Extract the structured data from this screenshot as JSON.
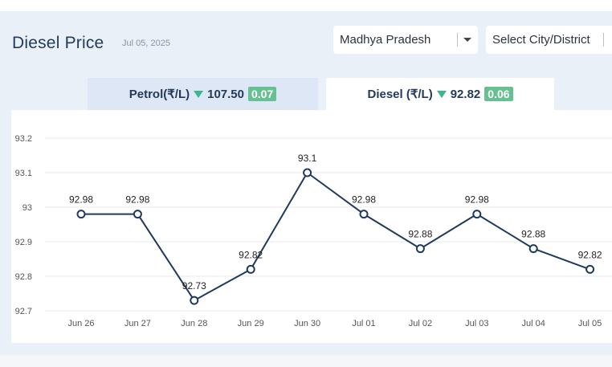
{
  "header": {
    "title": "Diesel Price",
    "date": "Jul 05, 2025"
  },
  "filters": {
    "state": "Madhya Pradesh",
    "city_placeholder": "Select City/District"
  },
  "tabs": [
    {
      "label": "Petrol(₹/L)",
      "price": "107.50",
      "change": "0.07",
      "trend": "down"
    },
    {
      "label": "Diesel (₹/L)",
      "price": "92.82",
      "change": "0.06",
      "trend": "down",
      "active": true
    }
  ],
  "colors": {
    "line": "#1f3a5f",
    "marker_fill": "#ffffff",
    "trend_down": "#3fb58a",
    "badge": "#67c091"
  },
  "chart_data": {
    "type": "line",
    "categories": [
      "Jun 26",
      "Jun 27",
      "Jun 28",
      "Jun 29",
      "Jun 30",
      "Jul 01",
      "Jul 02",
      "Jul 03",
      "Jul 04",
      "Jul 05"
    ],
    "values": [
      92.98,
      92.98,
      92.73,
      92.82,
      93.1,
      92.98,
      92.88,
      92.98,
      92.88,
      92.82
    ],
    "data_labels": [
      "92.98",
      "92.98",
      "92.73",
      "92.82",
      "93.1",
      "92.98",
      "92.88",
      "92.98",
      "92.88",
      "92.82"
    ],
    "yticks": [
      "92.7",
      "92.8",
      "92.9",
      "93",
      "93.1",
      "93.2"
    ],
    "ytick_values": [
      92.7,
      92.8,
      92.9,
      93.0,
      93.1,
      93.2
    ],
    "ylim": [
      92.7,
      93.2
    ],
    "grid": true
  }
}
